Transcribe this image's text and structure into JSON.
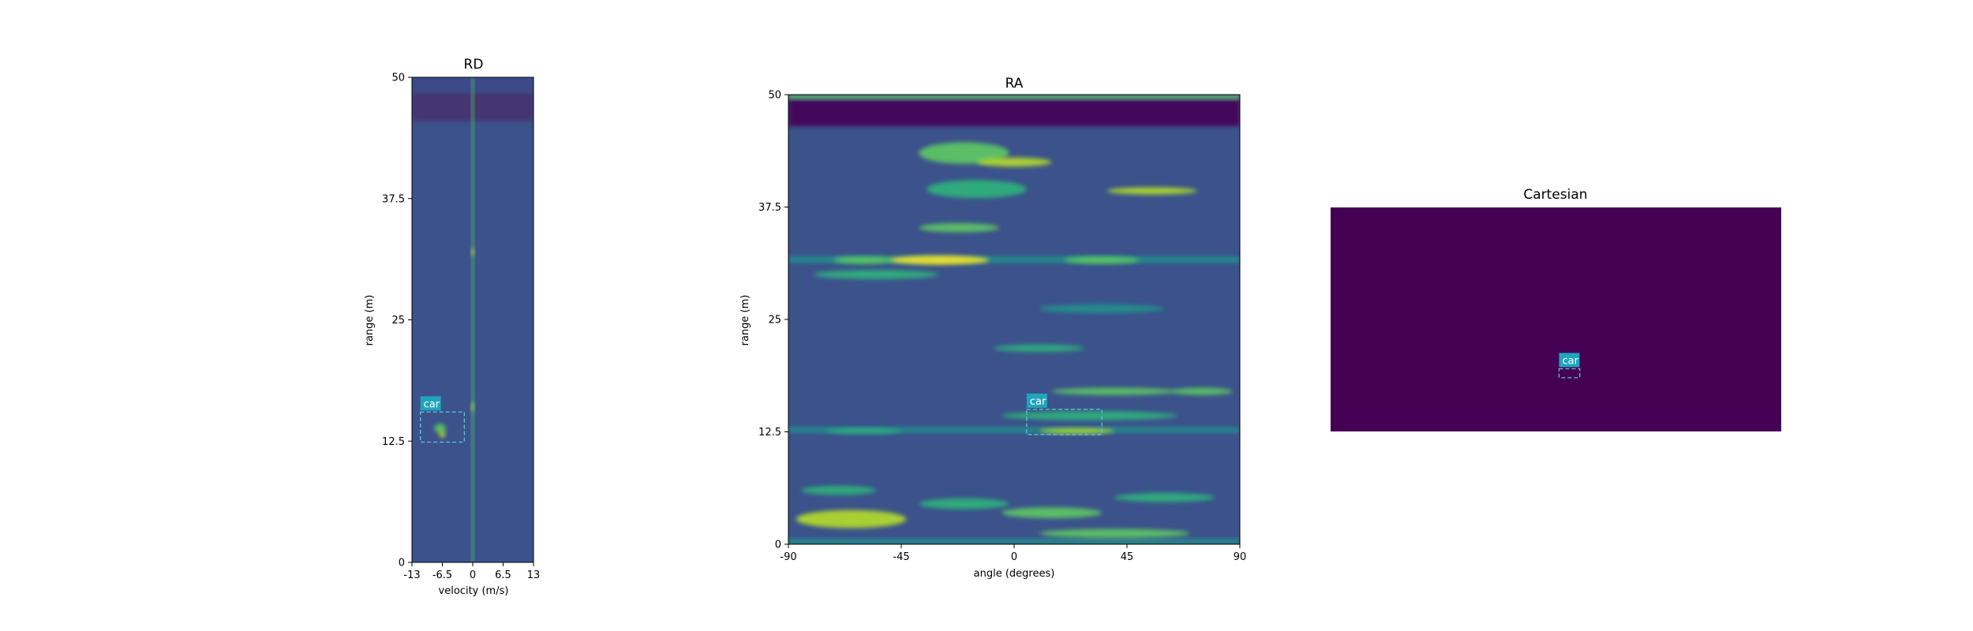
{
  "colormap": [
    "#440154",
    "#3b528b",
    "#21918c",
    "#5ec962",
    "#fde725"
  ],
  "chart_data": [
    {
      "type": "heatmap",
      "id": "rd",
      "title": "RD",
      "xlabel": "velocity (m/s)",
      "ylabel": "range (m)",
      "xlim": [
        -13,
        13
      ],
      "ylim": [
        0,
        50
      ],
      "xticks": [
        {
          "v": -13,
          "label": "-13"
        },
        {
          "v": -6.5,
          "label": "-6.5"
        },
        {
          "v": 0,
          "label": "0"
        },
        {
          "v": 6.5,
          "label": "6.5"
        },
        {
          "v": 13,
          "label": "13"
        }
      ],
      "yticks": [
        {
          "v": 0,
          "label": "0"
        },
        {
          "v": 12.5,
          "label": "12.5"
        },
        {
          "v": 25,
          "label": "25"
        },
        {
          "v": 37.5,
          "label": "37.5"
        },
        {
          "v": 50,
          "label": "50"
        }
      ],
      "background_color": "#3b528b",
      "bands": [
        {
          "y0": 45.5,
          "y1": 48.5,
          "x0": -13,
          "x1": 13,
          "color": "#46306e"
        },
        {
          "y0": 48.5,
          "y1": 50,
          "x0": -13,
          "x1": 13,
          "color": "#3e4a89"
        },
        {
          "y0": 0,
          "y1": 50,
          "x0": -0.25,
          "x1": 0.25,
          "color": "#4ec36b"
        }
      ],
      "blobs": [
        {
          "x": -7.0,
          "y": 13.8,
          "rx": 1.2,
          "ry": 0.5,
          "color": "#5ec962"
        },
        {
          "x": -6.5,
          "y": 13.2,
          "rx": 0.6,
          "ry": 0.4,
          "color": "#b5de2b"
        },
        {
          "x": 0,
          "y": 32,
          "rx": 0.3,
          "ry": 0.3,
          "color": "#fde725"
        },
        {
          "x": 0,
          "y": 16,
          "rx": 0.3,
          "ry": 0.5,
          "color": "#b5de2b"
        }
      ],
      "annotations": [
        {
          "label": "car",
          "x0": -11.2,
          "x1": -1.8,
          "y0": 12.4,
          "y1": 15.5
        }
      ]
    },
    {
      "type": "heatmap",
      "id": "ra",
      "title": "RA",
      "xlabel": "angle (degrees)",
      "ylabel": "range (m)",
      "xlim": [
        -90,
        90
      ],
      "ylim": [
        0,
        50
      ],
      "xticks": [
        {
          "v": -90,
          "label": "-90"
        },
        {
          "v": -45,
          "label": "-45"
        },
        {
          "v": 0,
          "label": "0"
        },
        {
          "v": 45,
          "label": "45"
        },
        {
          "v": 90,
          "label": "90"
        }
      ],
      "yticks": [
        {
          "v": 0,
          "label": "0"
        },
        {
          "v": 12.5,
          "label": "12.5"
        },
        {
          "v": 25,
          "label": "25"
        },
        {
          "v": 37.5,
          "label": "37.5"
        },
        {
          "v": 50,
          "label": "50"
        }
      ],
      "background_color": "#3b528b",
      "bands": [
        {
          "y0": 46.5,
          "y1": 49.5,
          "x0": -90,
          "x1": 90,
          "color": "#440154"
        },
        {
          "y0": 49.5,
          "y1": 50,
          "x0": -90,
          "x1": 90,
          "color": "#5ec962"
        },
        {
          "y0": 31.3,
          "y1": 32.0,
          "x0": -90,
          "x1": 90,
          "color": "#21918c"
        },
        {
          "y0": 12.4,
          "y1": 13.0,
          "x0": -90,
          "x1": 90,
          "color": "#21918c"
        },
        {
          "y0": 0,
          "y1": 0.6,
          "x0": -90,
          "x1": 90,
          "color": "#21918c"
        }
      ],
      "blobs": [
        {
          "x": -20,
          "y": 43.5,
          "rx": 18,
          "ry": 1.2,
          "color": "#5ec962"
        },
        {
          "x": 0,
          "y": 42.5,
          "rx": 15,
          "ry": 0.5,
          "color": "#b5de2b"
        },
        {
          "x": -15,
          "y": 39.5,
          "rx": 20,
          "ry": 1.0,
          "color": "#2fb47c"
        },
        {
          "x": 55,
          "y": 39.3,
          "rx": 18,
          "ry": 0.4,
          "color": "#b5de2b"
        },
        {
          "x": -22,
          "y": 35.2,
          "rx": 16,
          "ry": 0.5,
          "color": "#5ec962"
        },
        {
          "x": -30,
          "y": 31.6,
          "rx": 20,
          "ry": 0.5,
          "color": "#fde725"
        },
        {
          "x": 35,
          "y": 31.6,
          "rx": 15,
          "ry": 0.4,
          "color": "#5ec962"
        },
        {
          "x": -60,
          "y": 31.6,
          "rx": 12,
          "ry": 0.4,
          "color": "#5ec962"
        },
        {
          "x": -55,
          "y": 30.0,
          "rx": 25,
          "ry": 0.5,
          "color": "#2fb47c"
        },
        {
          "x": 35,
          "y": 26.2,
          "rx": 25,
          "ry": 0.5,
          "color": "#21918c"
        },
        {
          "x": 10,
          "y": 21.8,
          "rx": 18,
          "ry": 0.4,
          "color": "#2fb47c"
        },
        {
          "x": 40,
          "y": 17.0,
          "rx": 25,
          "ry": 0.4,
          "color": "#5ec962"
        },
        {
          "x": 75,
          "y": 17.0,
          "rx": 12,
          "ry": 0.4,
          "color": "#5ec962"
        },
        {
          "x": 30,
          "y": 14.3,
          "rx": 35,
          "ry": 0.5,
          "color": "#2fb47c"
        },
        {
          "x": 25,
          "y": 12.6,
          "rx": 15,
          "ry": 0.3,
          "color": "#b5de2b"
        },
        {
          "x": -60,
          "y": 12.6,
          "rx": 15,
          "ry": 0.3,
          "color": "#2fb47c"
        },
        {
          "x": -65,
          "y": 2.8,
          "rx": 22,
          "ry": 1.0,
          "color": "#b5de2b"
        },
        {
          "x": -70,
          "y": 6.0,
          "rx": 15,
          "ry": 0.5,
          "color": "#2fb47c"
        },
        {
          "x": -20,
          "y": 4.5,
          "rx": 18,
          "ry": 0.6,
          "color": "#2fb47c"
        },
        {
          "x": 15,
          "y": 3.5,
          "rx": 20,
          "ry": 0.6,
          "color": "#5ec962"
        },
        {
          "x": 60,
          "y": 5.2,
          "rx": 20,
          "ry": 0.5,
          "color": "#2fb47c"
        },
        {
          "x": 40,
          "y": 1.2,
          "rx": 30,
          "ry": 0.5,
          "color": "#5ec962"
        }
      ],
      "annotations": [
        {
          "label": "car",
          "x0": 5,
          "x1": 35,
          "y0": 12.2,
          "y1": 15.0
        }
      ]
    },
    {
      "type": "heatmap",
      "id": "cartesian",
      "title": "Cartesian",
      "background_color": "#440154",
      "xlim": [
        0,
        1
      ],
      "ylim": [
        0,
        1
      ],
      "bands": [],
      "blobs": [],
      "annotations": [
        {
          "label": "car",
          "x0": 0.507,
          "x1": 0.553,
          "y0": 0.24,
          "y1": 0.28
        }
      ]
    }
  ]
}
